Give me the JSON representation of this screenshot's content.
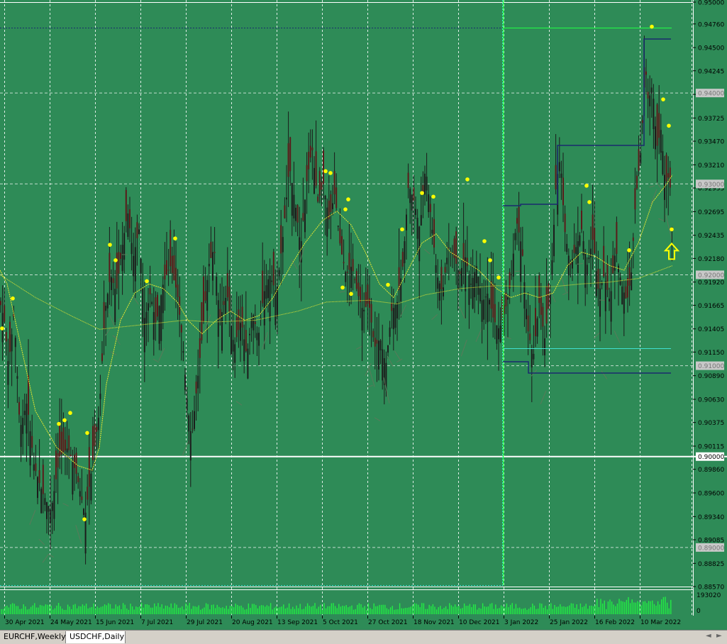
{
  "theme": {
    "background": "#2e8b57",
    "grid": "#ffffff",
    "candle_body": "#5a1a1a",
    "candle_wick": "#1a1a1a",
    "ma_color": "#e8e830",
    "dot_color": "#ffff00",
    "dark_line": "#1a2a6e",
    "bright_green": "#22ff44",
    "cyan": "#40e0d0",
    "volume": "#22ee44"
  },
  "tabs": [
    {
      "label": "EURCHF,Weekly",
      "active": false
    },
    {
      "label": "USDCHF,Daily",
      "active": true
    }
  ],
  "nav": {
    "left": "◄",
    "right": "►"
  },
  "chart_data": {
    "type": "candlestick",
    "symbol": "USDCHF",
    "timeframe": "Daily",
    "ylim": [
      0.8857,
      0.95
    ],
    "y_ticks": [
      "0.95000",
      "0.94760",
      "0.94500",
      "0.94245",
      "0.93985",
      "0.93725",
      "0.93470",
      "0.93210",
      "0.92955",
      "0.92695",
      "0.92435",
      "0.92180",
      "0.91920",
      "0.91665",
      "0.91405",
      "0.91150",
      "0.90890",
      "0.90630",
      "0.90375",
      "0.90115",
      "0.89860",
      "0.89600",
      "0.89340",
      "0.89085",
      "0.88825",
      "0.88570"
    ],
    "level_labels": [
      "0.94000",
      "0.93000",
      "0.92000",
      "0.91000",
      "0.90000",
      "0.89000"
    ],
    "x_labels": [
      "30 Apr 2021",
      "24 May 2021",
      "15 Jun 2021",
      "7 Jul 2021",
      "29 Jul 2021",
      "20 Aug 2021",
      "13 Sep 2021",
      "5 Oct 2021",
      "27 Oct 2021",
      "18 Nov 2021",
      "10 Dec 2021",
      "3 Jan 2022",
      "25 Jan 2022",
      "16 Feb 2022",
      "10 Mar 2022"
    ],
    "close_path": [
      [
        0,
        0.917
      ],
      [
        6,
        0.915
      ],
      [
        12,
        0.91
      ],
      [
        20,
        0.916
      ],
      [
        28,
        0.903
      ],
      [
        38,
        0.906
      ],
      [
        48,
        0.899
      ],
      [
        60,
        0.896
      ],
      [
        72,
        0.894
      ],
      [
        84,
        0.9
      ],
      [
        96,
        0.901
      ],
      [
        108,
        0.898
      ],
      [
        120,
        0.8935
      ],
      [
        130,
        0.899
      ],
      [
        140,
        0.905
      ],
      [
        148,
        0.916
      ],
      [
        156,
        0.92
      ],
      [
        164,
        0.918
      ],
      [
        172,
        0.923
      ],
      [
        180,
        0.927
      ],
      [
        188,
        0.922
      ],
      [
        196,
        0.925
      ],
      [
        204,
        0.915
      ],
      [
        212,
        0.918
      ],
      [
        220,
        0.9145
      ],
      [
        230,
        0.919
      ],
      [
        240,
        0.921
      ],
      [
        250,
        0.918
      ],
      [
        258,
        0.912
      ],
      [
        264,
        0.906
      ],
      [
        270,
        0.902
      ],
      [
        278,
        0.908
      ],
      [
        286,
        0.914
      ],
      [
        294,
        0.921
      ],
      [
        302,
        0.923
      ],
      [
        310,
        0.915
      ],
      [
        320,
        0.918
      ],
      [
        330,
        0.912
      ],
      [
        340,
        0.915
      ],
      [
        348,
        0.911
      ],
      [
        356,
        0.916
      ],
      [
        364,
        0.913
      ],
      [
        372,
        0.918
      ],
      [
        380,
        0.92
      ],
      [
        390,
        0.918
      ],
      [
        400,
        0.925
      ],
      [
        408,
        0.932
      ],
      [
        416,
        0.928
      ],
      [
        424,
        0.923
      ],
      [
        432,
        0.93
      ],
      [
        440,
        0.934
      ],
      [
        448,
        0.928
      ],
      [
        456,
        0.93
      ],
      [
        464,
        0.926
      ],
      [
        472,
        0.929
      ],
      [
        480,
        0.923
      ],
      [
        488,
        0.92
      ],
      [
        496,
        0.921
      ],
      [
        504,
        0.918
      ],
      [
        512,
        0.916
      ],
      [
        520,
        0.917
      ],
      [
        528,
        0.912
      ],
      [
        536,
        0.913
      ],
      [
        544,
        0.91
      ],
      [
        552,
        0.916
      ],
      [
        560,
        0.917
      ],
      [
        568,
        0.921
      ],
      [
        576,
        0.93
      ],
      [
        584,
        0.928
      ],
      [
        592,
        0.925
      ],
      [
        600,
        0.932
      ],
      [
        608,
        0.926
      ],
      [
        616,
        0.92
      ],
      [
        624,
        0.918
      ],
      [
        632,
        0.923
      ],
      [
        640,
        0.922
      ],
      [
        648,
        0.92
      ],
      [
        656,
        0.922
      ],
      [
        664,
        0.919
      ],
      [
        672,
        0.921
      ],
      [
        680,
        0.917
      ],
      [
        688,
        0.918
      ],
      [
        696,
        0.915
      ],
      [
        704,
        0.914
      ],
      [
        712,
        0.916
      ],
      [
        720,
        0.919
      ],
      [
        728,
        0.926
      ],
      [
        736,
        0.923
      ],
      [
        744,
        0.914
      ],
      [
        752,
        0.911
      ],
      [
        760,
        0.917
      ],
      [
        768,
        0.913
      ],
      [
        776,
        0.918
      ],
      [
        784,
        0.93
      ],
      [
        790,
        0.933
      ],
      [
        796,
        0.925
      ],
      [
        804,
        0.921
      ],
      [
        812,
        0.923
      ],
      [
        820,
        0.925
      ],
      [
        828,
        0.921
      ],
      [
        836,
        0.924
      ],
      [
        844,
        0.918
      ],
      [
        852,
        0.92
      ],
      [
        860,
        0.917
      ],
      [
        868,
        0.923
      ],
      [
        876,
        0.919
      ],
      [
        884,
        0.917
      ],
      [
        890,
        0.92
      ],
      [
        896,
        0.928
      ],
      [
        904,
        0.934
      ],
      [
        910,
        0.943
      ],
      [
        914,
        0.939
      ],
      [
        920,
        0.941
      ],
      [
        926,
        0.934
      ],
      [
        932,
        0.936
      ],
      [
        938,
        0.93
      ],
      [
        944,
        0.931
      ],
      [
        948,
        0.924
      ]
    ],
    "moving_averages": [
      {
        "name": "fast",
        "points": [
          [
            0,
            0.9205
          ],
          [
            10,
            0.919
          ],
          [
            30,
            0.912
          ],
          [
            50,
            0.905
          ],
          [
            80,
            0.901
          ],
          [
            110,
            0.899
          ],
          [
            130,
            0.8985
          ],
          [
            140,
            0.901
          ],
          [
            150,
            0.908
          ],
          [
            170,
            0.915
          ],
          [
            190,
            0.918
          ],
          [
            210,
            0.919
          ],
          [
            230,
            0.9185
          ],
          [
            250,
            0.917
          ],
          [
            265,
            0.915
          ],
          [
            285,
            0.9135
          ],
          [
            305,
            0.915
          ],
          [
            325,
            0.916
          ],
          [
            345,
            0.915
          ],
          [
            365,
            0.9155
          ],
          [
            385,
            0.9175
          ],
          [
            410,
            0.921
          ],
          [
            430,
            0.9235
          ],
          [
            455,
            0.926
          ],
          [
            475,
            0.927
          ],
          [
            495,
            0.9255
          ],
          [
            515,
            0.9225
          ],
          [
            535,
            0.919
          ],
          [
            555,
            0.9175
          ],
          [
            575,
            0.9205
          ],
          [
            595,
            0.9235
          ],
          [
            615,
            0.9245
          ],
          [
            635,
            0.9225
          ],
          [
            655,
            0.9215
          ],
          [
            675,
            0.9205
          ],
          [
            700,
            0.9185
          ],
          [
            720,
            0.9175
          ],
          [
            740,
            0.918
          ],
          [
            760,
            0.9175
          ],
          [
            780,
            0.918
          ],
          [
            800,
            0.921
          ],
          [
            820,
            0.9225
          ],
          [
            840,
            0.922
          ],
          [
            860,
            0.921
          ],
          [
            880,
            0.9205
          ],
          [
            900,
            0.9235
          ],
          [
            920,
            0.928
          ],
          [
            940,
            0.93
          ],
          [
            948,
            0.931
          ]
        ]
      },
      {
        "name": "slow",
        "points": [
          [
            0,
            0.92
          ],
          [
            50,
            0.9175
          ],
          [
            100,
            0.9155
          ],
          [
            140,
            0.914
          ],
          [
            200,
            0.9145
          ],
          [
            260,
            0.915
          ],
          [
            300,
            0.9148
          ],
          [
            360,
            0.915
          ],
          [
            420,
            0.916
          ],
          [
            460,
            0.917
          ],
          [
            520,
            0.9172
          ],
          [
            560,
            0.9168
          ],
          [
            600,
            0.9178
          ],
          [
            650,
            0.9185
          ],
          [
            700,
            0.9188
          ],
          [
            740,
            0.9187
          ],
          [
            780,
            0.9187
          ],
          [
            820,
            0.919
          ],
          [
            860,
            0.9192
          ],
          [
            900,
            0.9196
          ],
          [
            948,
            0.921
          ]
        ]
      }
    ],
    "signal_dots": [
      [
        3,
        0.9141
      ],
      [
        18,
        0.9174
      ],
      [
        83,
        0.9036
      ],
      [
        91,
        0.904
      ],
      [
        99,
        0.9048
      ],
      [
        119,
        0.8931
      ],
      [
        123,
        0.9026
      ],
      [
        155,
        0.9233
      ],
      [
        163,
        0.9216
      ],
      [
        207,
        0.9193
      ],
      [
        247,
        0.924
      ],
      [
        459,
        0.9314
      ],
      [
        466,
        0.9312
      ],
      [
        483,
        0.9186
      ],
      [
        487,
        0.9272
      ],
      [
        491,
        0.9283
      ],
      [
        495,
        0.9179
      ],
      [
        547,
        0.9189
      ],
      [
        567,
        0.925
      ],
      [
        595,
        0.929
      ],
      [
        611,
        0.9286
      ],
      [
        659,
        0.9305
      ],
      [
        683,
        0.9237
      ],
      [
        691,
        0.9216
      ],
      [
        703,
        0.9197
      ],
      [
        827,
        0.9298
      ],
      [
        831,
        0.928
      ],
      [
        887,
        0.9227
      ],
      [
        919,
        0.9473
      ],
      [
        935,
        0.9393
      ],
      [
        943,
        0.9364
      ],
      [
        947,
        0.925
      ]
    ],
    "volume": {
      "label_top": "193020",
      "label_zero": "0"
    },
    "arrow": {
      "x": 947,
      "y": 0.9225,
      "direction": "up"
    }
  }
}
